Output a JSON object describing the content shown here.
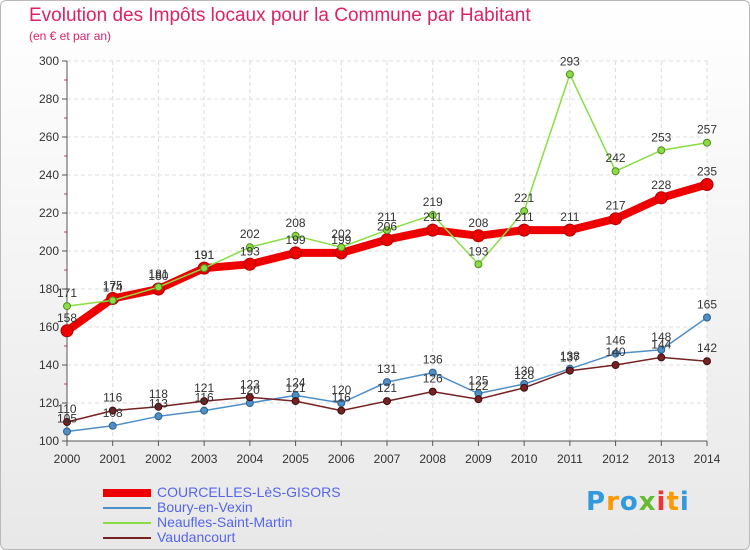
{
  "chart_data": {
    "type": "line",
    "title": "Evolution des Impôts locaux pour la Commune par Habitant",
    "subtitle": "(en € et par an)",
    "xlabel": "",
    "ylabel": "",
    "x": [
      "2000",
      "2001",
      "2002",
      "2003",
      "2004",
      "2005",
      "2006",
      "2007",
      "2008",
      "2009",
      "2010",
      "2011",
      "2012",
      "2013",
      "2014"
    ],
    "ylim": [
      100,
      300
    ],
    "yticks": [
      100,
      120,
      140,
      160,
      180,
      200,
      220,
      240,
      260,
      280,
      300
    ],
    "grid": true,
    "legend_position": "bottom-left",
    "series": [
      {
        "name": "COURCELLES-LèS-GISORS",
        "color": "#ee0000",
        "values": [
          158,
          175,
          180,
          191,
          193,
          199,
          199,
          206,
          211,
          208,
          211,
          211,
          217,
          228,
          235
        ]
      },
      {
        "name": "Boury-en-Vexin",
        "color": "#4f8fc8",
        "values": [
          105,
          108,
          113,
          116,
          120,
          124,
          120,
          131,
          136,
          125,
          130,
          138,
          146,
          148,
          165
        ]
      },
      {
        "name": "Neaufles-Saint-Martin",
        "color": "#88dd44",
        "values": [
          171,
          174,
          181,
          191,
          202,
          208,
          202,
          211,
          219,
          193,
          221,
          293,
          242,
          253,
          257
        ]
      },
      {
        "name": "Vaudancourt",
        "color": "#772222",
        "values": [
          110,
          116,
          118,
          121,
          123,
          121,
          116,
          121,
          126,
          122,
          128,
          137,
          140,
          144,
          142
        ]
      }
    ]
  },
  "logo": {
    "text": "Proxiti",
    "letter_colors": [
      "#3399dd",
      "#ff9900",
      "#3399dd",
      "#66bb33",
      "#ee3333",
      "#ff9900",
      "#3399dd"
    ]
  }
}
